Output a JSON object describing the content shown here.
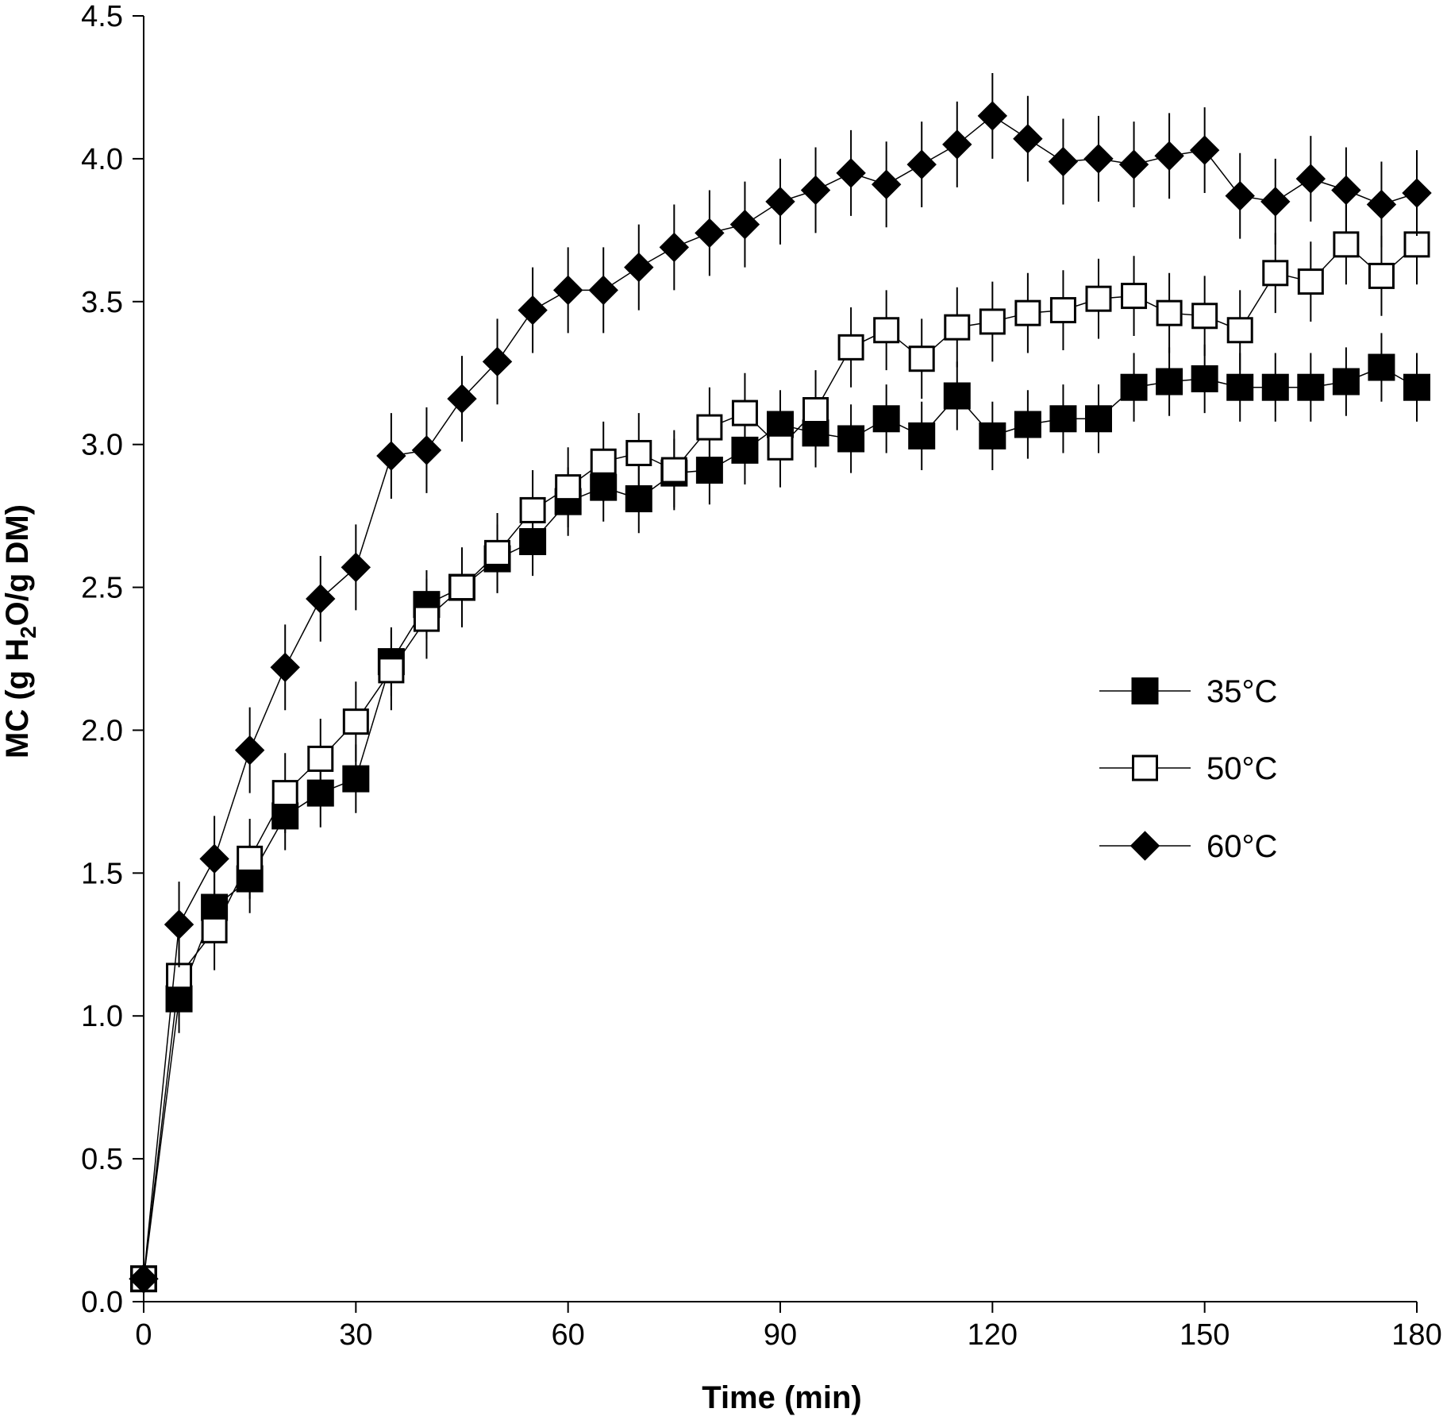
{
  "chart_data": {
    "type": "line",
    "title": "",
    "xlabel": "Time (min)",
    "ylabel": {
      "before": "MC (g H",
      "sub": "2",
      "after": "O/g DM)"
    },
    "xlim": [
      0,
      180
    ],
    "ylim": [
      0,
      4.5
    ],
    "x_ticks": [
      0,
      30,
      60,
      90,
      120,
      150,
      180
    ],
    "x_tick_labels": [
      "0",
      "30",
      "60",
      "90",
      "120",
      "150",
      "180"
    ],
    "y_ticks": [
      0,
      0.5,
      1,
      1.5,
      2,
      2.5,
      3,
      3.5,
      4,
      4.5
    ],
    "y_tick_labels": [
      "0.0",
      "0.5",
      "1.0",
      "1.5",
      "2.0",
      "2.5",
      "3.0",
      "3.5",
      "4.0",
      "4.5"
    ],
    "grid": false,
    "legend_position": "center-right",
    "x": [
      0,
      5,
      10,
      15,
      20,
      25,
      30,
      35,
      40,
      45,
      50,
      55,
      60,
      65,
      70,
      75,
      80,
      85,
      90,
      95,
      100,
      105,
      110,
      115,
      120,
      125,
      130,
      135,
      140,
      145,
      150,
      155,
      160,
      165,
      170,
      175,
      180
    ],
    "series": [
      {
        "name": "35°C",
        "marker": "square-filled",
        "values": [
          0.08,
          1.06,
          1.38,
          1.48,
          1.7,
          1.78,
          1.83,
          2.24,
          2.44,
          2.5,
          2.6,
          2.66,
          2.8,
          2.85,
          2.81,
          2.9,
          2.91,
          2.98,
          3.07,
          3.04,
          3.02,
          3.09,
          3.03,
          3.17,
          3.03,
          3.07,
          3.09,
          3.09,
          3.2,
          3.22,
          3.23,
          3.2,
          3.2,
          3.2,
          3.22,
          3.27,
          3.2
        ],
        "errors": [
          0.02,
          0.12,
          0.12,
          0.12,
          0.12,
          0.12,
          0.12,
          0.12,
          0.12,
          0.12,
          0.12,
          0.12,
          0.12,
          0.12,
          0.12,
          0.12,
          0.12,
          0.12,
          0.12,
          0.12,
          0.12,
          0.12,
          0.12,
          0.12,
          0.12,
          0.12,
          0.12,
          0.12,
          0.12,
          0.12,
          0.12,
          0.12,
          0.12,
          0.12,
          0.12,
          0.12,
          0.12
        ]
      },
      {
        "name": "50°C",
        "marker": "square-open",
        "values": [
          0.08,
          1.14,
          1.3,
          1.55,
          1.78,
          1.9,
          2.03,
          2.21,
          2.39,
          2.5,
          2.62,
          2.77,
          2.85,
          2.94,
          2.97,
          2.91,
          3.06,
          3.11,
          2.99,
          3.12,
          3.34,
          3.4,
          3.3,
          3.41,
          3.43,
          3.46,
          3.47,
          3.51,
          3.52,
          3.46,
          3.45,
          3.4,
          3.6,
          3.57,
          3.7,
          3.59,
          3.7
        ],
        "errors": [
          0.02,
          0.14,
          0.14,
          0.14,
          0.14,
          0.14,
          0.14,
          0.14,
          0.14,
          0.14,
          0.14,
          0.14,
          0.14,
          0.14,
          0.14,
          0.14,
          0.14,
          0.14,
          0.14,
          0.14,
          0.14,
          0.14,
          0.14,
          0.14,
          0.14,
          0.14,
          0.14,
          0.14,
          0.14,
          0.14,
          0.14,
          0.14,
          0.14,
          0.14,
          0.14,
          0.14,
          0.14
        ]
      },
      {
        "name": "60°C",
        "marker": "diamond-filled",
        "values": [
          0.08,
          1.32,
          1.55,
          1.93,
          2.22,
          2.46,
          2.57,
          2.96,
          2.98,
          3.16,
          3.29,
          3.47,
          3.54,
          3.54,
          3.62,
          3.69,
          3.74,
          3.77,
          3.85,
          3.89,
          3.95,
          3.91,
          3.98,
          4.05,
          4.15,
          4.07,
          3.99,
          4.0,
          3.98,
          4.01,
          4.03,
          3.87,
          3.85,
          3.93,
          3.89,
          3.84,
          3.88
        ],
        "errors": [
          0.02,
          0.15,
          0.15,
          0.15,
          0.15,
          0.15,
          0.15,
          0.15,
          0.15,
          0.15,
          0.15,
          0.15,
          0.15,
          0.15,
          0.15,
          0.15,
          0.15,
          0.15,
          0.15,
          0.15,
          0.15,
          0.15,
          0.15,
          0.15,
          0.15,
          0.15,
          0.15,
          0.15,
          0.15,
          0.15,
          0.15,
          0.15,
          0.15,
          0.15,
          0.15,
          0.15,
          0.15
        ]
      }
    ]
  }
}
